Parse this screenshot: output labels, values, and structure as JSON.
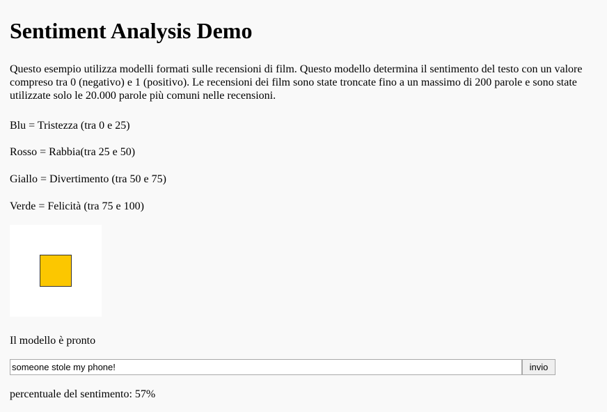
{
  "page": {
    "title": "Sentiment Analysis Demo",
    "description": "Questo esempio utilizza modelli formati sulle recensioni di film. Questo modello determina il sentimento del testo con un valore compreso tra 0 (negativo) e 1 (positivo). Le recensioni dei film sono state troncate fino a un massimo di 200 parole e sono state utilizzate solo le 20.000 parole più comuni nelle recensioni."
  },
  "legend": {
    "blue": "Blu = Tristezza (tra 0 e 25)",
    "red": "Rosso = Rabbia(tra 25 e 50)",
    "yellow": "Giallo = Divertimento (tra 50 e 75)",
    "green": "Verde = Felicità (tra 75 e 100)"
  },
  "indicator": {
    "color": "#fcc700",
    "border_color": "#333333",
    "background": "#ffffff"
  },
  "status": {
    "model_ready": "Il modello è pronto"
  },
  "form": {
    "input_value": "someone stole my phone!",
    "submit_label": "invio"
  },
  "result": {
    "text": "percentuale del sentimento: 57%"
  }
}
